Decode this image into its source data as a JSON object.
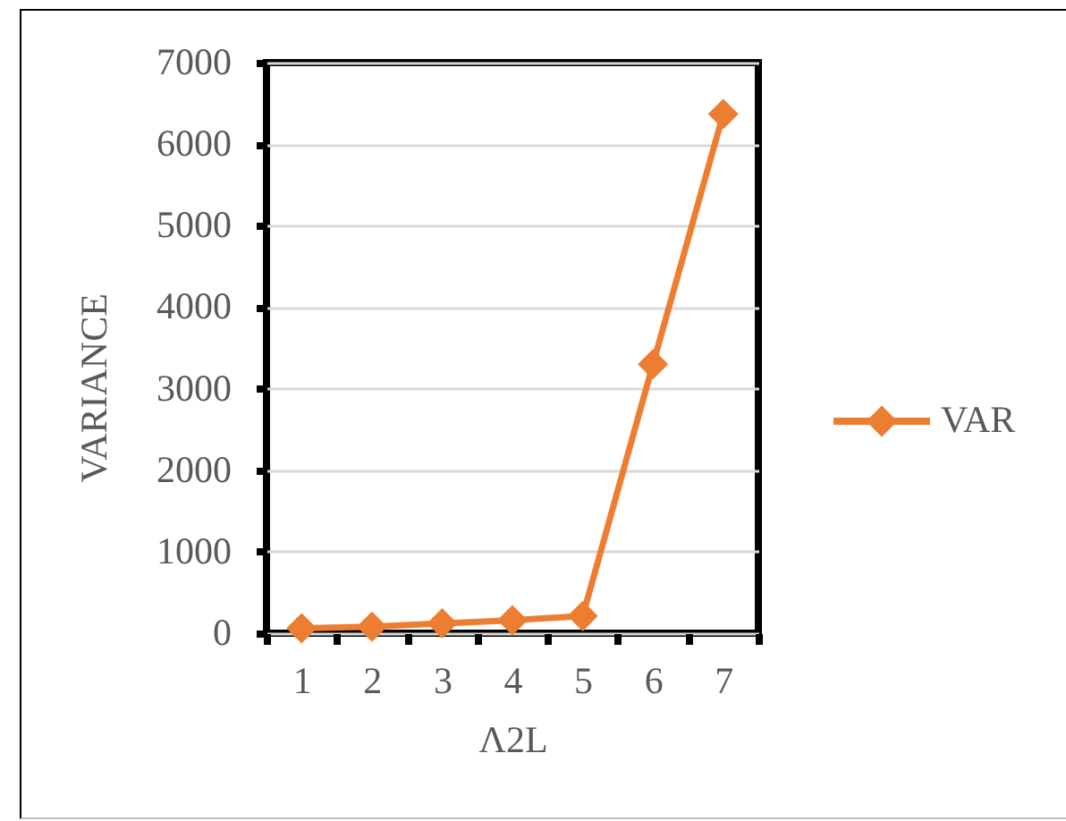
{
  "chart_data": {
    "type": "line",
    "xlabel": "Λ2L",
    "ylabel": "VARIANCE",
    "categories": [
      "1",
      "2",
      "3",
      "4",
      "5",
      "6",
      "7"
    ],
    "series": [
      {
        "name": "VAR",
        "color": "#ed7d31",
        "values": [
          60,
          80,
          120,
          160,
          210,
          3300,
          6370
        ]
      }
    ],
    "ylim": [
      0,
      7000
    ],
    "yticks": [
      0,
      1000,
      2000,
      3000,
      4000,
      5000,
      6000,
      7000
    ],
    "grid": "y",
    "legend": "right",
    "marker": "diamond",
    "line_style": "solid"
  }
}
